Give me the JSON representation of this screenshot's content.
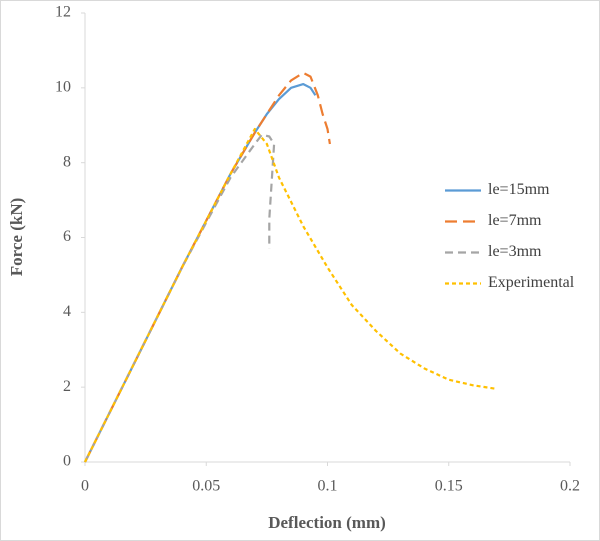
{
  "chart_data": {
    "type": "line",
    "xlabel": "Deflection (mm)",
    "ylabel": "Force (kN)",
    "xlim": [
      0,
      0.2
    ],
    "xticks": [
      0,
      0.05,
      0.1,
      0.15,
      0.2
    ],
    "ylim": [
      0,
      12
    ],
    "yticks": [
      0,
      2,
      4,
      6,
      8,
      10,
      12
    ],
    "grid": false,
    "legend": "right",
    "series": [
      {
        "name": "le=15mm",
        "color": "#5b9bd5",
        "line_style": "solid",
        "x": [
          0,
          0.02,
          0.04,
          0.06,
          0.07,
          0.075,
          0.08,
          0.085,
          0.09,
          0.093,
          0.095
        ],
        "values": [
          0,
          2.6,
          5.2,
          7.7,
          8.8,
          9.3,
          9.7,
          10.0,
          10.1,
          10.0,
          9.8
        ]
      },
      {
        "name": "le=7mm",
        "color": "#ed7d31",
        "line_style": "long-dash",
        "x": [
          0,
          0.04,
          0.06,
          0.07,
          0.08,
          0.085,
          0.09,
          0.093,
          0.096,
          0.098,
          0.1,
          0.101
        ],
        "values": [
          0,
          5.2,
          7.7,
          8.8,
          9.8,
          10.2,
          10.4,
          10.3,
          9.8,
          9.3,
          8.9,
          8.5
        ]
      },
      {
        "name": "le=3mm",
        "color": "#a5a5a5",
        "line_style": "dash",
        "x": [
          0,
          0.04,
          0.06,
          0.07,
          0.073,
          0.076,
          0.078,
          0.077,
          0.076,
          0.076
        ],
        "values": [
          0,
          5.2,
          7.6,
          8.5,
          8.75,
          8.7,
          8.5,
          7.5,
          6.5,
          5.7
        ]
      },
      {
        "name": "Experimental",
        "color": "#ffc000",
        "line_style": "short-dash",
        "x": [
          0,
          0.02,
          0.04,
          0.06,
          0.07,
          0.075,
          0.08,
          0.09,
          0.1,
          0.11,
          0.12,
          0.13,
          0.14,
          0.15,
          0.16,
          0.17
        ],
        "values": [
          0,
          2.6,
          5.2,
          7.7,
          8.9,
          8.5,
          7.6,
          6.3,
          5.2,
          4.2,
          3.5,
          2.9,
          2.5,
          2.2,
          2.05,
          1.95
        ]
      }
    ]
  }
}
